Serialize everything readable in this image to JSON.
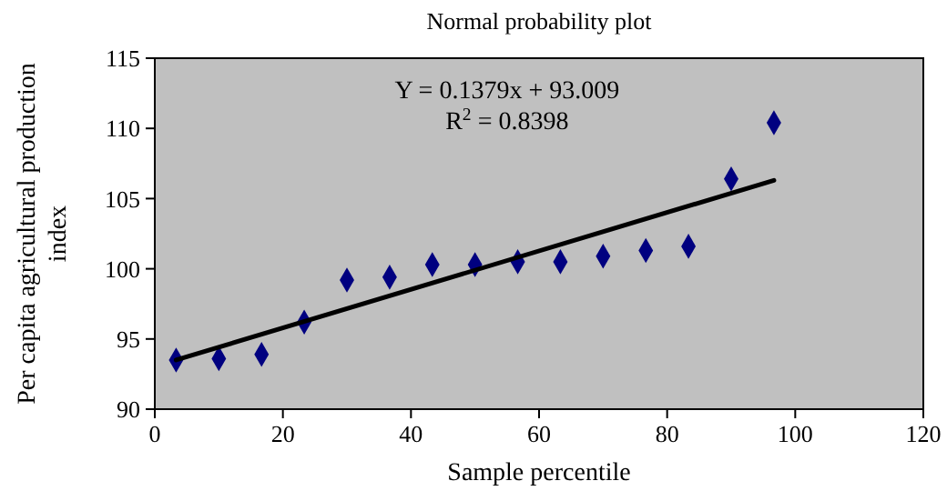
{
  "chart_data": {
    "type": "scatter",
    "title": "Normal probability plot",
    "xlabel": "Sample percentile",
    "ylabel": "Per capita agricultural production index",
    "annotations": [
      "Y = 0.1379x + 93.009",
      "R$^{2}$ = 0.8398"
    ],
    "xlim": [
      0,
      120
    ],
    "xticks": [
      0,
      20,
      40,
      60,
      80,
      100,
      120
    ],
    "ylim": [
      90,
      115
    ],
    "yticks": [
      90,
      95,
      100,
      105,
      110,
      115
    ],
    "series": [
      {
        "marker": "diamond",
        "color": "#000080",
        "x": [
          3.33,
          10,
          16.67,
          23.33,
          30,
          36.67,
          43.33,
          50,
          56.67,
          63.33,
          70,
          76.67,
          83.33,
          90,
          96.67
        ],
        "values": [
          93.5,
          93.6,
          93.9,
          96.2,
          99.2,
          99.4,
          100.3,
          100.3,
          100.5,
          100.5,
          100.9,
          101.3,
          101.6,
          106.4,
          110.4
        ]
      },
      {
        "type": "line",
        "marker": "none",
        "color": "#000000",
        "x": [
          3.33,
          96.67
        ],
        "values": [
          93.5,
          106.3
        ]
      }
    ]
  }
}
